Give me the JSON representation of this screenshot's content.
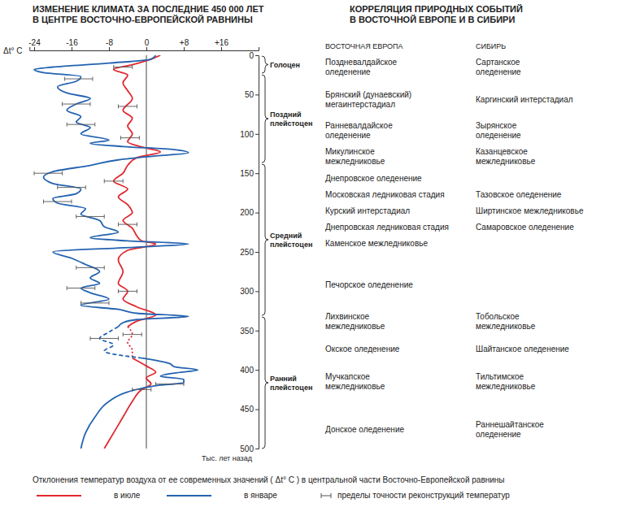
{
  "chart_data": {
    "type": "line",
    "orientation": "horizontal",
    "title": "ИЗМЕНЕНИЕ КЛИМАТА ЗА ПОСЛЕДНИЕ 450 000 ЛЕТ\nВ ЦЕНТРЕ ВОСТОЧНО-ЕВРОПЕЙСКОЙ РАВНИНЫ",
    "xlabel": "Δt° C",
    "ylabel": "Тыс. лет назад",
    "xlim": [
      -25,
      24
    ],
    "xticks": [
      -24,
      -16,
      -8,
      0,
      {
        "value": 8,
        "label": "+8"
      },
      {
        "value": 16,
        "label": "+16"
      }
    ],
    "ylim": [
      0,
      500
    ],
    "yticks": [
      0,
      50,
      100,
      150,
      200,
      250,
      300,
      350,
      400,
      450,
      500
    ],
    "reference_lines": [
      {
        "x": 0
      }
    ],
    "legend": "bottom",
    "caption": "Отклонения температур воздуха от ее современных значений ( Δt° C ) в центральной части Восточно-Европейской равнины",
    "error_bar_label": "пределы точности реконструкций температур",
    "series": [
      {
        "name": "в июле",
        "color": "#e0282e",
        "line_style": "solid",
        "y": [
          0,
          5,
          12,
          18,
          25,
          35,
          45,
          55,
          70,
          80,
          90,
          100,
          110,
          118,
          123,
          130,
          140,
          150,
          160,
          170,
          180,
          190,
          200,
          210,
          220,
          230,
          236,
          240,
          248,
          260,
          275,
          290,
          300,
          310,
          320,
          330,
          338,
          345,
          365,
          385,
          395,
          403,
          410,
          418,
          425,
          440,
          460,
          480,
          500
        ],
        "values": [
          3,
          1,
          -3,
          -7,
          -4,
          -5,
          -4,
          -3,
          -5,
          -3,
          -4,
          -3,
          -4,
          0,
          3,
          -2,
          -4,
          -5,
          -7,
          -4,
          -6,
          -4,
          -3,
          -5,
          -3,
          -2,
          -1,
          2,
          -4,
          -6,
          -5,
          -6,
          -4,
          -5,
          -2,
          2,
          -2,
          -4,
          null,
          -3,
          0,
          2,
          0,
          1,
          -1,
          -3,
          -5,
          -7,
          -9
        ],
        "error_bars": [
          {
            "y": 15,
            "value": -5,
            "error": 2
          },
          {
            "y": 65,
            "value": -4,
            "error": 2
          },
          {
            "y": 105,
            "value": -3.5,
            "error": 2
          },
          {
            "y": 160,
            "value": -7,
            "error": 2
          },
          {
            "y": 215,
            "value": -4,
            "error": 2
          },
          {
            "y": 300,
            "value": -4,
            "error": 2
          },
          {
            "y": 355,
            "value": -3,
            "error": 2
          },
          {
            "y": 425,
            "value": -1,
            "error": 2
          }
        ]
      },
      {
        "name": "в январе",
        "color": "#2463b0",
        "line_style": "solid",
        "y": [
          0,
          5,
          10,
          15,
          18,
          22,
          27,
          33,
          40,
          48,
          55,
          62,
          70,
          78,
          85,
          92,
          100,
          108,
          112,
          116,
          120,
          124,
          128,
          133,
          140,
          148,
          155,
          163,
          170,
          176,
          182,
          188,
          195,
          202,
          210,
          218,
          225,
          232,
          236,
          240,
          244,
          250,
          258,
          266,
          275,
          283,
          290,
          296,
          302,
          310,
          318,
          323,
          328,
          332,
          336,
          340,
          345,
          365,
          385,
          392,
          396,
          400,
          404,
          408,
          412,
          416,
          420,
          428,
          440,
          460,
          480,
          500
        ],
        "values": [
          2,
          1,
          -8,
          -20,
          -24,
          -22,
          -14,
          -15,
          -19,
          -17,
          -12,
          -15,
          -17,
          -14,
          -15,
          -12,
          -14,
          -8,
          -12,
          -5,
          6,
          9,
          2,
          -6,
          -12,
          -20,
          -22,
          -20,
          -14,
          -15,
          -20,
          -19,
          -13,
          -14,
          -10,
          -9,
          -6,
          -12,
          -4,
          9,
          -2,
          -20,
          -16,
          -13,
          -10,
          -12,
          -10,
          -14,
          -12,
          -8,
          -14,
          -6,
          -2,
          9,
          -2,
          -5,
          -6,
          null,
          -1,
          5,
          6,
          11,
          6,
          3,
          8,
          8,
          2,
          -4,
          -8,
          -11,
          -13,
          -14
        ],
        "error_bars": [
          {
            "y": 30,
            "value": -14.5,
            "error": 3
          },
          {
            "y": 62,
            "value": -15,
            "error": 3
          },
          {
            "y": 88,
            "value": -14,
            "error": 3
          },
          {
            "y": 150,
            "value": -21,
            "error": 3
          },
          {
            "y": 168,
            "value": -16,
            "error": 3
          },
          {
            "y": 186,
            "value": -19,
            "error": 3
          },
          {
            "y": 205,
            "value": -12,
            "error": 3
          },
          {
            "y": 270,
            "value": -12,
            "error": 3
          },
          {
            "y": 296,
            "value": -14,
            "error": 3
          },
          {
            "y": 315,
            "value": -11,
            "error": 3
          },
          {
            "y": 360,
            "value": -9,
            "error": 3
          },
          {
            "y": 418,
            "value": 5,
            "error": 3
          }
        ]
      },
      {
        "name": "в июле",
        "color": "#e0282e",
        "line_style": "dotted",
        "y": [
          345,
          355,
          365,
          375,
          385
        ],
        "values": [
          -4,
          -3,
          -4,
          -3,
          -3
        ]
      },
      {
        "name": "в январе",
        "color": "#2463b0",
        "line_style": "dashed",
        "y": [
          345,
          352,
          360,
          368,
          376,
          385
        ],
        "values": [
          -6,
          -8,
          -10,
          -7,
          -9,
          -1
        ]
      }
    ],
    "epochs": [
      "Голоцен",
      "Поздний\nплейстоцен",
      "Средний\nплейстоцен",
      "Ранний\nплейстоцен"
    ],
    "correlation": {
      "title": "КОРРЕЛЯЦИЯ ПРИРОДНЫХ СОБЫТИЙ\nВ ВОСТОЧНОЙ ЕВРОПЕ И В СИБИРИ",
      "columns": [
        "ВОСТОЧНАЯ ЕВРОПА",
        "СИБИРЬ"
      ],
      "rows": [
        [
          "Поздневалдайское\nоледенение",
          "Сартанское\nоледенение"
        ],
        [
          "Брянский (дунаевский)\nмегаинтерстадиал",
          "Каргинский интерстадиал"
        ],
        [
          "Ранневалдайское\nоледенение",
          "Зырянское\nоледенение"
        ],
        [
          "Микулинское\nмежледниковье",
          "Казанцевское\nмежледниковье"
        ],
        [
          "Днепровское оледенение",
          null
        ],
        [
          "Московская ледниковая стадия",
          "Тазовское оледенение"
        ],
        [
          "Курский интерстадиал",
          "Ширтинское межледниковье"
        ],
        [
          "Днепровская ледниковая стадия",
          "Самаровское оледенение"
        ],
        [
          "Каменское межледниковье",
          null
        ],
        [
          "Печорское оледенение",
          null
        ],
        [
          "Лихвинское\nмежледниковье",
          "Тобольское\nмежледниковье"
        ],
        [
          "Окское оледенение",
          "Шайтанское оледенение"
        ],
        [
          "Мучкапское\nмежледниковье",
          "Тильтимское\nмежледниковье"
        ],
        [
          "Донское оледенение",
          "Раннешайтанское\nоледенение"
        ]
      ]
    }
  }
}
